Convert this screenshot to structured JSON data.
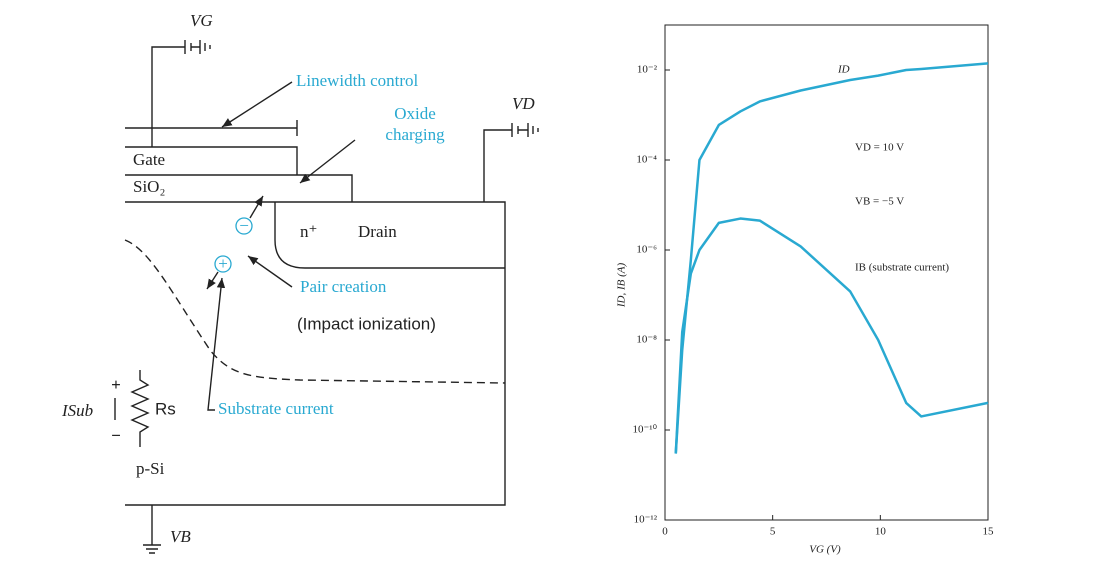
{
  "diagram": {
    "labels": {
      "vg": "VG",
      "linewidth": "Linewidth control",
      "oxide": "Oxide",
      "charging": "charging",
      "vd": "VD",
      "gate": "Gate",
      "sio2": "SiO₂",
      "nplus": "n⁺",
      "drain": "Drain",
      "minus_carrier": "−",
      "plus_carrier": "+",
      "pair": "Pair creation",
      "impact": "(Impact ionization)",
      "substrate_current": "Substrate current",
      "isub": "ISub",
      "rs": "Rs",
      "plus": "+",
      "minus": "−",
      "psi": "p-Si",
      "vb": "VB"
    }
  },
  "chart_data": {
    "type": "line",
    "log_y": true,
    "color": "#29a9d1",
    "xlabel": "VG (V)",
    "ylabel": "ID, IB (A)",
    "x": [
      0.5,
      0.8,
      1.2,
      1.6,
      2.5,
      3.5,
      4.4,
      6.3,
      8.6,
      9.9,
      11.2,
      11.9,
      15
    ],
    "series": [
      {
        "name": "ID",
        "values": [
          3e-11,
          6e-09,
          6e-07,
          0.0001,
          0.0006,
          0.0012,
          0.002,
          0.0035,
          0.006,
          0.0075,
          0.01,
          0.0105,
          0.014
        ]
      },
      {
        "name": "IB (substrate current)",
        "values": [
          3e-11,
          1.5e-08,
          3e-07,
          1e-06,
          4e-06,
          5e-06,
          4.5e-06,
          1.2e-06,
          1.2e-07,
          1e-08,
          4e-10,
          2e-10,
          4e-10
        ]
      }
    ],
    "annotations": [
      "VD = 10 V",
      "VB = −5 V"
    ],
    "xlim": [
      0,
      15
    ],
    "xticks": [
      0,
      5,
      10,
      15
    ],
    "ylim": [
      1e-12,
      0.1
    ],
    "yticks": [
      {
        "value": 1e-12,
        "label": "10⁻¹²"
      },
      {
        "value": 1e-10,
        "label": "10⁻¹⁰"
      },
      {
        "value": 1e-08,
        "label": "10⁻⁸"
      },
      {
        "value": 1e-06,
        "label": "10⁻⁶"
      },
      {
        "value": 0.0001,
        "label": "10⁻⁴"
      },
      {
        "value": 0.01,
        "label": "10⁻²"
      }
    ]
  }
}
